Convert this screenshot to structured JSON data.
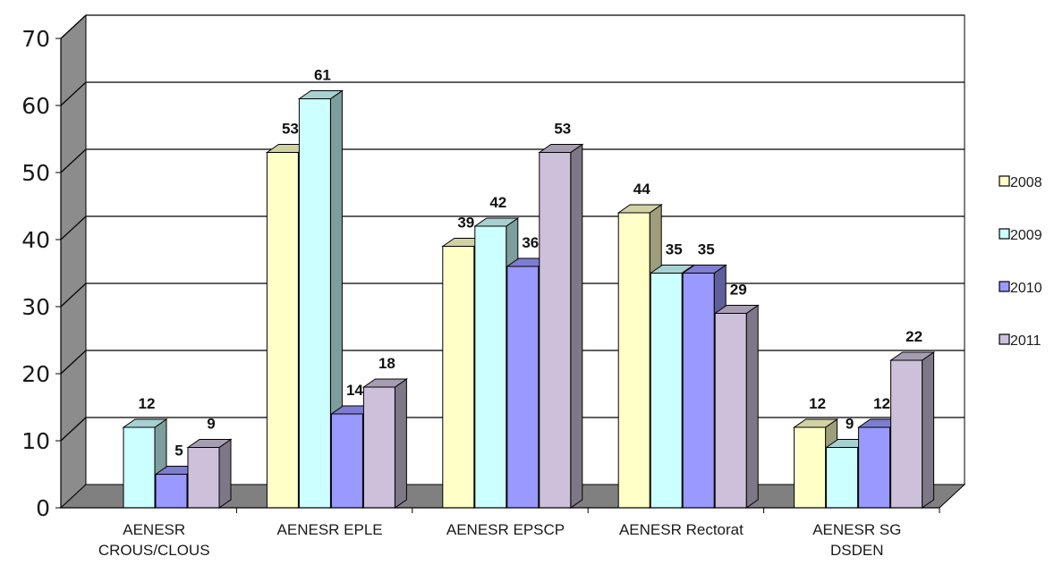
{
  "chart_data": {
    "type": "bar",
    "title": "",
    "xlabel": "",
    "ylabel": "",
    "ylim": [
      0,
      70
    ],
    "yticks": [
      "0",
      "10",
      "20",
      "30",
      "40",
      "50",
      "60",
      "70"
    ],
    "grid": true,
    "legend_position": "right",
    "categories": [
      [
        "AENESR",
        "CROUS/CLOUS"
      ],
      [
        "AENESR EPLE"
      ],
      [
        "AENESR EPSCP"
      ],
      [
        "AENESR Rectorat"
      ],
      [
        "AENESR SG",
        "DSDEN"
      ]
    ],
    "series": [
      {
        "name": "2008",
        "color": "#ffffc8",
        "values": [
          null,
          53,
          39,
          44,
          12
        ]
      },
      {
        "name": "2009",
        "color": "#ccffff",
        "values": [
          12,
          61,
          42,
          35,
          9
        ]
      },
      {
        "name": "2010",
        "color": "#9999ff",
        "values": [
          5,
          14,
          36,
          35,
          12
        ]
      },
      {
        "name": "2011",
        "color": "#ccc0da",
        "values": [
          9,
          18,
          53,
          29,
          22
        ]
      }
    ]
  }
}
